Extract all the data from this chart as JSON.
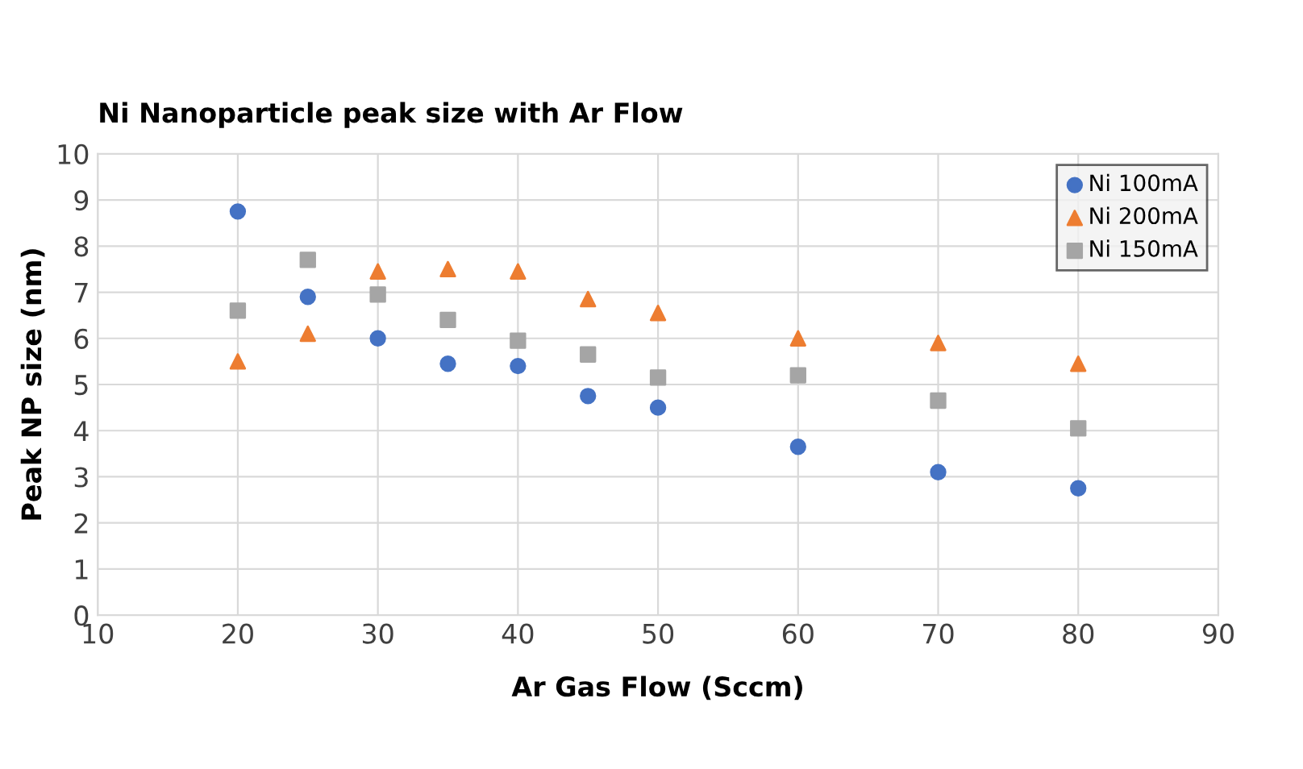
{
  "chart_data": {
    "type": "scatter",
    "title": "Ni Nanoparticle peak size with Ar Flow",
    "xlabel": "Ar Gas Flow (Sccm)",
    "ylabel": "Peak NP size (nm)",
    "x": [
      20,
      25,
      30,
      35,
      40,
      45,
      50,
      60,
      70,
      80
    ],
    "series": [
      {
        "name": "Ni 100mA",
        "color": "#4472c4",
        "marker": "circle",
        "values": [
          8.75,
          6.9,
          6.0,
          5.45,
          5.4,
          4.75,
          4.5,
          3.65,
          3.1,
          2.75
        ]
      },
      {
        "name": "Ni 200mA",
        "color": "#ed7d31",
        "marker": "triangle",
        "values": [
          5.5,
          6.1,
          7.45,
          7.5,
          7.45,
          6.85,
          6.55,
          6.0,
          5.9,
          5.45
        ]
      },
      {
        "name": "Ni 150mA",
        "color": "#a5a5a5",
        "marker": "square",
        "values": [
          6.6,
          7.7,
          6.95,
          6.4,
          5.95,
          5.65,
          5.15,
          5.2,
          4.65,
          4.05
        ]
      }
    ],
    "xlim": [
      10,
      90
    ],
    "xticks": [
      10,
      20,
      30,
      40,
      50,
      60,
      70,
      80,
      90
    ],
    "ylim": [
      0,
      10
    ],
    "yticks": [
      0,
      1,
      2,
      3,
      4,
      5,
      6,
      7,
      8,
      9,
      10
    ],
    "grid": true,
    "legend": "top right"
  }
}
